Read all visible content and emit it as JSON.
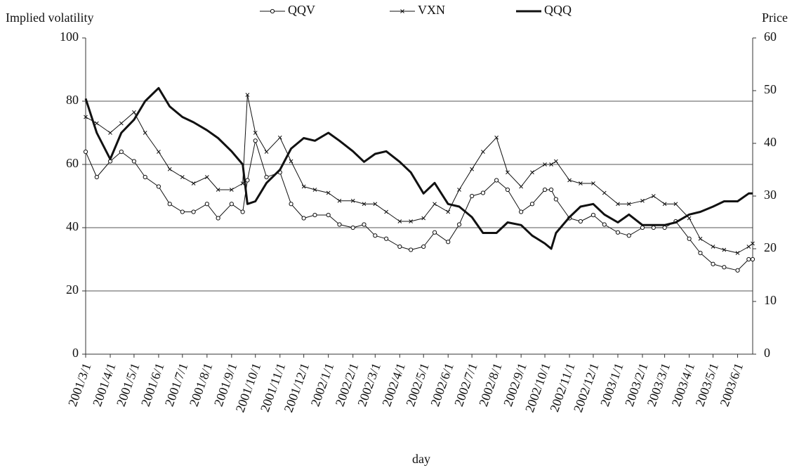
{
  "chart_data": {
    "type": "line",
    "y_label": "Implied volatility",
    "y2_label": "Price",
    "x_label": "day",
    "xlim": [
      "2001/3/1",
      "2003/6/20"
    ],
    "xticks": [
      "2001/3/1",
      "2001/4/1",
      "2001/5/1",
      "2001/6/1",
      "2001/7/1",
      "2001/8/1",
      "2001/9/1",
      "2001/10/1",
      "2001/11/1",
      "2001/12/1",
      "2002/1/1",
      "2002/2/1",
      "2002/3/1",
      "2002/4/1",
      "2002/5/1",
      "2002/6/1",
      "2002/7/1",
      "2002/8/1",
      "2002/9/1",
      "2002/10/1",
      "2002/11/1",
      "2002/12/1",
      "2003/1/1",
      "2003/2/1",
      "2003/3/1",
      "2003/4/1",
      "2003/5/1",
      "2003/6/1"
    ],
    "ylim": [
      0,
      100
    ],
    "yticks": [
      0,
      20,
      40,
      60,
      80,
      100
    ],
    "y2lim": [
      0,
      60
    ],
    "y2ticks": [
      0,
      10,
      20,
      30,
      40,
      50,
      60
    ],
    "grid": true,
    "x": [
      "2001/3/1",
      "2001/3/15",
      "2001/4/1",
      "2001/4/15",
      "2001/5/1",
      "2001/5/15",
      "2001/6/1",
      "2001/6/15",
      "2001/7/1",
      "2001/7/15",
      "2001/8/1",
      "2001/8/15",
      "2001/9/1",
      "2001/9/15",
      "2001/9/21",
      "2001/10/1",
      "2001/10/15",
      "2001/11/1",
      "2001/11/15",
      "2001/12/1",
      "2001/12/15",
      "2002/1/1",
      "2002/1/15",
      "2002/2/1",
      "2002/2/15",
      "2002/3/1",
      "2002/3/15",
      "2002/4/1",
      "2002/4/15",
      "2002/5/1",
      "2002/5/15",
      "2002/6/1",
      "2002/6/15",
      "2002/7/1",
      "2002/7/15",
      "2002/8/1",
      "2002/8/15",
      "2002/9/1",
      "2002/9/15",
      "2002/10/1",
      "2002/10/9",
      "2002/10/15",
      "2002/11/1",
      "2002/11/15",
      "2002/12/1",
      "2002/12/15",
      "2003/1/1",
      "2003/1/15",
      "2003/2/1",
      "2003/2/15",
      "2003/3/1",
      "2003/3/15",
      "2003/4/1",
      "2003/4/15",
      "2003/5/1",
      "2003/5/15",
      "2003/6/1",
      "2003/6/15",
      "2003/6/20"
    ],
    "series": [
      {
        "name": "QQV",
        "color": "#111111",
        "marker": "circle",
        "values": [
          64,
          56,
          61,
          64,
          61,
          56,
          53,
          47.5,
          45,
          45,
          47.5,
          43,
          47.5,
          45,
          55,
          67.5,
          56,
          57.5,
          47.5,
          43,
          44,
          44,
          41,
          40,
          41,
          37.5,
          36.5,
          34,
          33,
          34,
          38.5,
          35.5,
          41,
          50,
          51,
          55,
          52,
          45,
          47.5,
          52,
          52,
          49,
          43,
          42,
          44,
          41,
          38.5,
          37.5,
          40,
          40,
          40,
          42,
          36.5,
          32,
          28.5,
          27.5,
          26.5,
          30,
          30
        ]
      },
      {
        "name": "VXN",
        "color": "#111111",
        "marker": "cross",
        "values": [
          75,
          73,
          70,
          73,
          76.5,
          70,
          64,
          58.5,
          56,
          54,
          56,
          52,
          52,
          54,
          82,
          70,
          64,
          68.5,
          61,
          53,
          52,
          51,
          48.5,
          48.5,
          47.5,
          47.5,
          45,
          42,
          42,
          43,
          47.5,
          45,
          52,
          58.5,
          64,
          68.5,
          57.5,
          53,
          57.5,
          60,
          60,
          61,
          55,
          54,
          54,
          51,
          47.5,
          47.5,
          48.5,
          50,
          47.5,
          47.5,
          43,
          36.5,
          34,
          33,
          32,
          34,
          35
        ]
      },
      {
        "name": "QQQ",
        "color": "#111111",
        "axis": "y2",
        "values": [
          48.5,
          42,
          37,
          42,
          44.5,
          48,
          50.5,
          47,
          45,
          44,
          42.5,
          41,
          38.5,
          36,
          28.5,
          29,
          32.5,
          35,
          39,
          41,
          40.5,
          42,
          40.5,
          38.5,
          36.5,
          38,
          38.5,
          36.5,
          34.5,
          30.5,
          32.5,
          28.5,
          28,
          26,
          23,
          23,
          25,
          24.5,
          22.5,
          21,
          20,
          23,
          26,
          28,
          28.5,
          26.5,
          25,
          26.5,
          24.5,
          24.5,
          24.5,
          25,
          26.5,
          27,
          28,
          29,
          29,
          30.5,
          30.5
        ]
      }
    ]
  }
}
